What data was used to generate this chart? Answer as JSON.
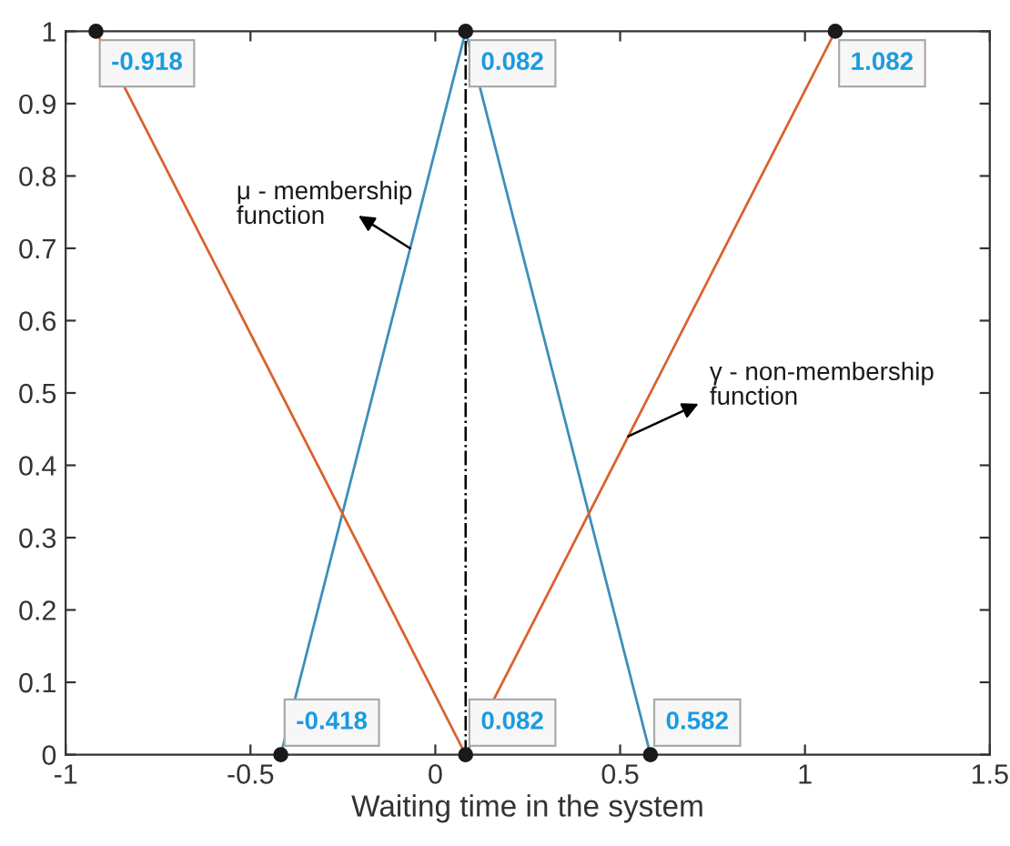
{
  "chart_data": {
    "type": "line",
    "xlabel": "Waiting time in the system",
    "series": [
      {
        "x": [
          -0.418,
          0.082,
          0.582
        ],
        "values": [
          0,
          1,
          0
        ],
        "color": "#3d8fb8"
      },
      {
        "x": [
          -0.918,
          0.082,
          1.082
        ],
        "values": [
          1,
          0,
          1
        ],
        "color": "#d9632e"
      }
    ],
    "marker": "circle",
    "line_style": "solid",
    "grid": false,
    "xlim": [
      -1,
      1.5
    ],
    "xticks": [
      -1,
      -0.5,
      0,
      0.5,
      1,
      1.5
    ],
    "ylim": [
      0,
      1
    ],
    "yticks": [
      0,
      0.1,
      0.2,
      0.3,
      0.4,
      0.5,
      0.6,
      0.7,
      0.8,
      0.9,
      1
    ],
    "ref_lines": [
      {
        "axis": "x",
        "value": 0.082,
        "color": "#000000",
        "line_style": "dashdot"
      }
    ],
    "annotations": [
      {
        "text": "-0.918",
        "x": -0.918,
        "y": 1
      },
      {
        "text": "0.082",
        "x": 0.082,
        "y": 1
      },
      {
        "text": "1.082",
        "x": 1.082,
        "y": 1
      },
      {
        "text": "-0.418",
        "x": -0.418,
        "y": 0
      },
      {
        "text": "0.082",
        "x": 0.082,
        "y": 0
      },
      {
        "text": "0.582",
        "x": 0.582,
        "y": 0
      },
      {
        "text": "μ - membership\nfunction",
        "x": -0.068,
        "y": 0.7
      },
      {
        "text": "γ - non-membership\nfunction",
        "x": 0.522,
        "y": 0.44
      }
    ]
  }
}
